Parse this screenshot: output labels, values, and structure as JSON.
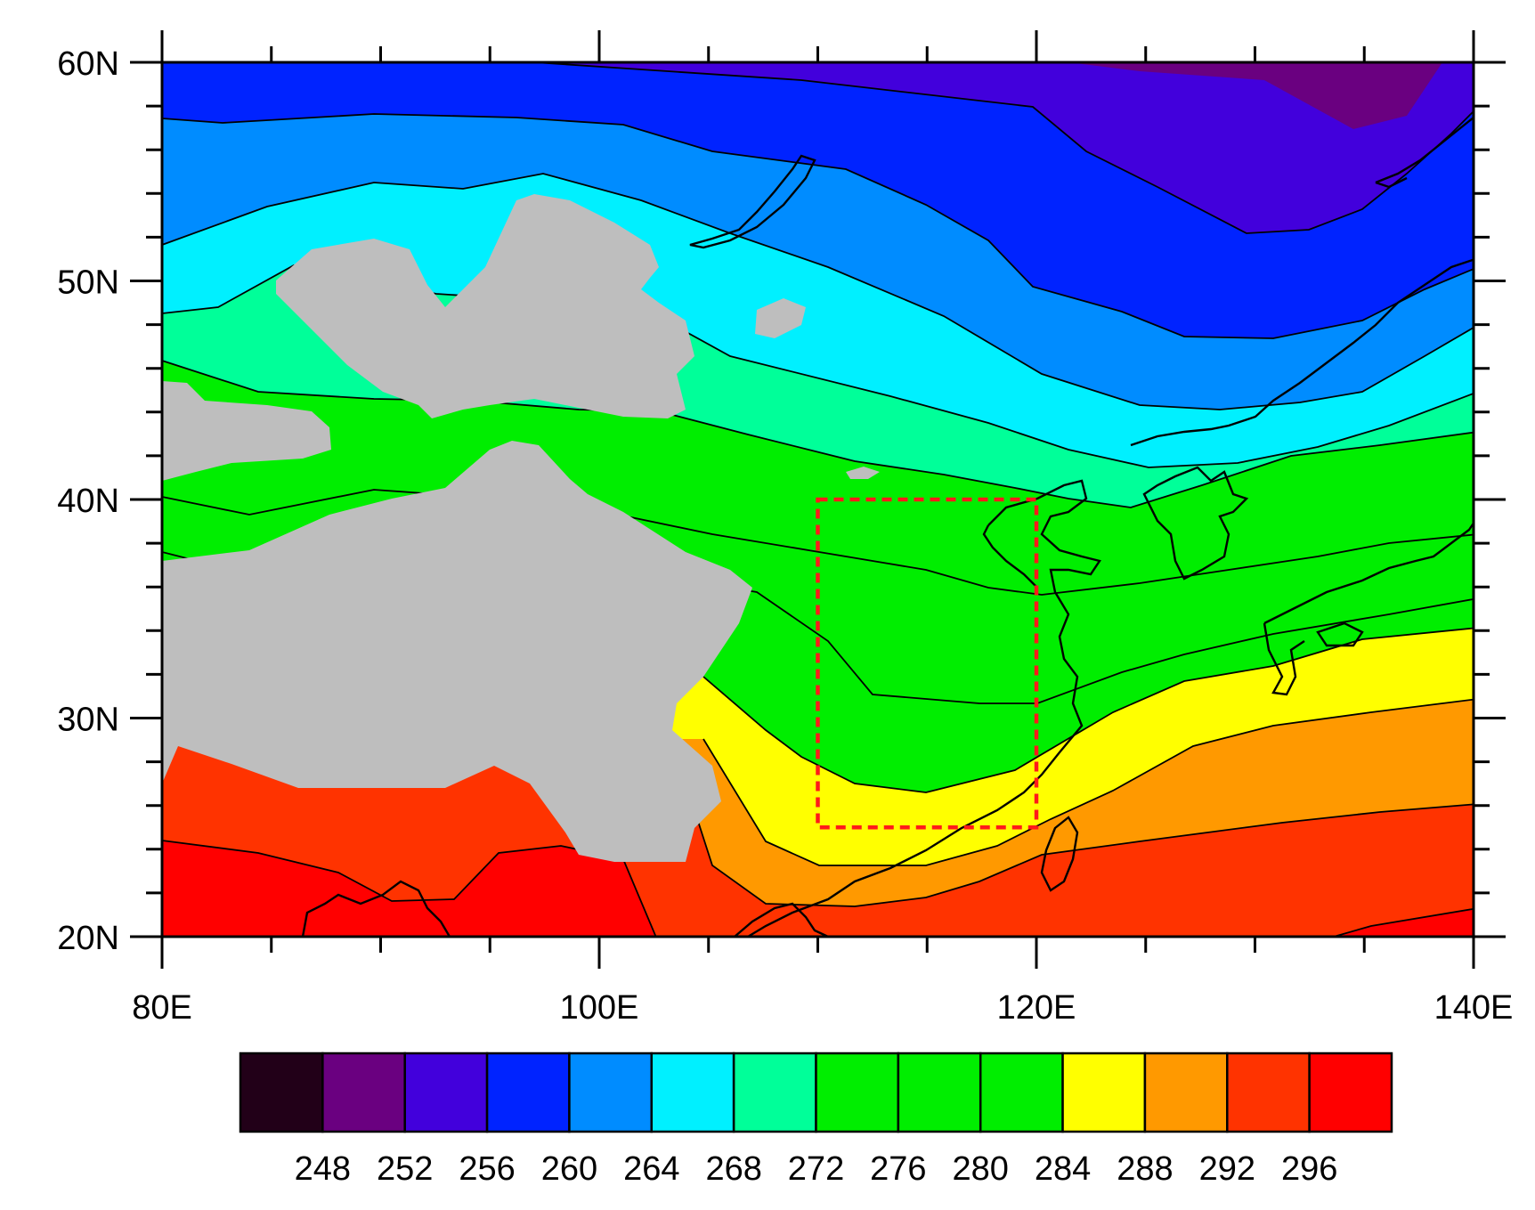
{
  "map": {
    "x_axis": {
      "min": 80,
      "max": 140,
      "major_ticks": [
        {
          "value": 80,
          "label": "80E"
        },
        {
          "value": 100,
          "label": "100E"
        },
        {
          "value": 120,
          "label": "120E"
        },
        {
          "value": 140,
          "label": "140E"
        }
      ],
      "minor_step": 5
    },
    "y_axis": {
      "min": 20,
      "max": 60,
      "major_ticks": [
        {
          "value": 20,
          "label": "20N"
        },
        {
          "value": 30,
          "label": "30N"
        },
        {
          "value": 40,
          "label": "40N"
        },
        {
          "value": 50,
          "label": "50N"
        },
        {
          "value": 60,
          "label": "60N"
        }
      ],
      "minor_step": 2
    },
    "highlight_box": {
      "lon_min": 110,
      "lon_max": 120,
      "lat_min": 25,
      "lat_max": 40,
      "color": "#ff1a1a"
    },
    "missing_color": "#bebebe",
    "colorbar": {
      "colors": [
        "#220018",
        "#6a0080",
        "#4200dc",
        "#0023ff",
        "#008cff",
        "#00f0ff",
        "#00ff99",
        "#00ee00",
        "#00ee00",
        "#00ee00",
        "#ffff00",
        "#ff9900",
        "#ff3300",
        "#ff0000"
      ],
      "labels": [
        "248",
        "252",
        "256",
        "260",
        "264",
        "268",
        "272",
        "276",
        "280",
        "284",
        "288",
        "292",
        "296"
      ]
    }
  }
}
